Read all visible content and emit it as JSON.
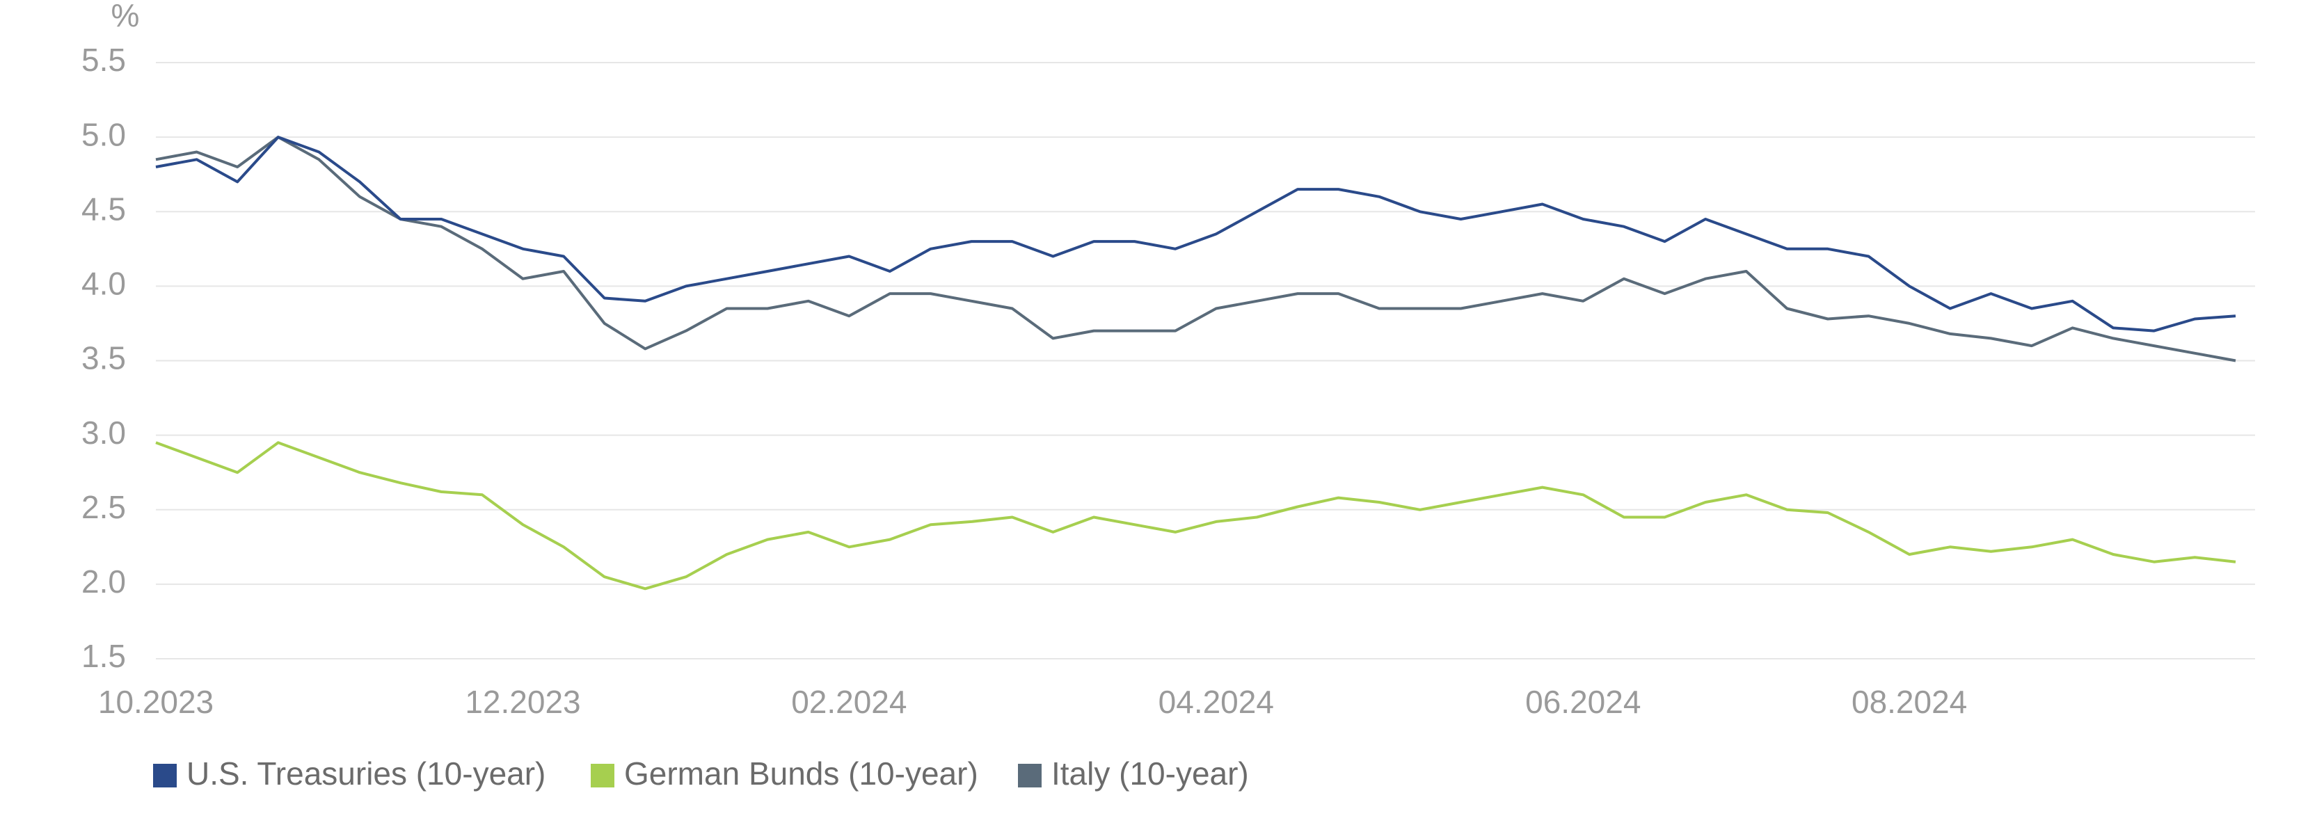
{
  "chart_data": {
    "type": "line",
    "y_label": "%",
    "categories": [
      "10.2023",
      null,
      null,
      null,
      null,
      null,
      null,
      null,
      null,
      "12.2023",
      null,
      null,
      null,
      null,
      null,
      null,
      null,
      "02.2024",
      null,
      null,
      null,
      null,
      null,
      null,
      null,
      null,
      "04.2024",
      null,
      null,
      null,
      null,
      null,
      null,
      null,
      null,
      "06.2024",
      null,
      null,
      null,
      null,
      null,
      null,
      null,
      "08.2024",
      null,
      null,
      null,
      null,
      null,
      null,
      null,
      null
    ],
    "series": [
      {
        "name": "U.S. Treasuries (10-year)",
        "color": "#2a4a8a",
        "values": [
          4.8,
          4.85,
          4.7,
          5.0,
          4.9,
          4.7,
          4.45,
          4.45,
          4.35,
          4.25,
          4.2,
          3.92,
          3.9,
          4.0,
          4.05,
          4.1,
          4.15,
          4.2,
          4.1,
          4.25,
          4.3,
          4.3,
          4.2,
          4.3,
          4.3,
          4.25,
          4.35,
          4.5,
          4.65,
          4.65,
          4.6,
          4.5,
          4.45,
          4.5,
          4.55,
          4.45,
          4.4,
          4.3,
          4.45,
          4.35,
          4.25,
          4.25,
          4.2,
          4.0,
          3.85,
          3.95,
          3.85,
          3.9,
          3.72,
          3.7,
          3.78,
          3.8
        ]
      },
      {
        "name": "German Bunds (10-year)",
        "color": "#a6cf4f",
        "values": [
          2.95,
          2.85,
          2.75,
          2.95,
          2.85,
          2.75,
          2.68,
          2.62,
          2.6,
          2.4,
          2.25,
          2.05,
          1.97,
          2.05,
          2.2,
          2.3,
          2.35,
          2.25,
          2.3,
          2.4,
          2.42,
          2.45,
          2.35,
          2.45,
          2.4,
          2.35,
          2.42,
          2.45,
          2.52,
          2.58,
          2.55,
          2.5,
          2.55,
          2.6,
          2.65,
          2.6,
          2.45,
          2.45,
          2.55,
          2.6,
          2.5,
          2.48,
          2.35,
          2.2,
          2.25,
          2.22,
          2.25,
          2.3,
          2.2,
          2.15,
          2.18,
          2.15
        ]
      },
      {
        "name": "Italy (10-year)",
        "color": "#5a6b7a",
        "values": [
          4.85,
          4.9,
          4.8,
          5.0,
          4.85,
          4.6,
          4.45,
          4.4,
          4.25,
          4.05,
          4.1,
          3.75,
          3.58,
          3.7,
          3.85,
          3.85,
          3.9,
          3.8,
          3.95,
          3.95,
          3.9,
          3.85,
          3.65,
          3.7,
          3.7,
          3.7,
          3.85,
          3.9,
          3.95,
          3.95,
          3.85,
          3.85,
          3.85,
          3.9,
          3.95,
          3.9,
          4.05,
          3.95,
          4.05,
          4.1,
          3.85,
          3.78,
          3.8,
          3.75,
          3.68,
          3.65,
          3.6,
          3.72,
          3.65,
          3.6,
          3.55,
          3.5
        ]
      }
    ],
    "ylim": [
      1.5,
      5.5
    ],
    "yticks": [
      1.5,
      {
        "value": 2,
        "label": "2.0"
      },
      2.5,
      {
        "value": 3,
        "label": "3.0"
      },
      3.5,
      {
        "value": 4,
        "label": "4.0"
      },
      4.5,
      {
        "value": 5,
        "label": "5.0"
      },
      5.5
    ],
    "grid": true
  }
}
